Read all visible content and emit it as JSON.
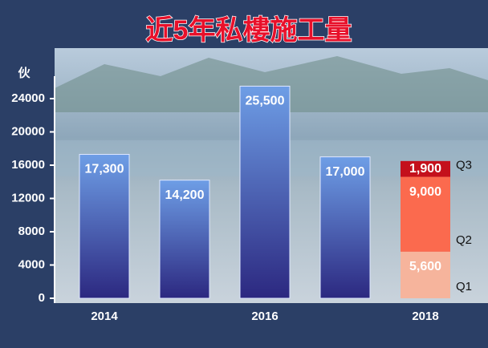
{
  "chart_data": {
    "type": "bar",
    "title": "近5年私樓施工量",
    "y_label": "伙",
    "categories": [
      "2014",
      null,
      "2016",
      null,
      "2018"
    ],
    "series": [
      {
        "color": "#5d8fdc",
        "values": [
          17300,
          14200,
          25500,
          17000,
          null
        ],
        "value_labels": [
          "17,300",
          "14,200",
          "25,500",
          "17,000",
          null
        ]
      },
      {
        "name": "Q1",
        "color": "#f6b49c",
        "values": [
          null,
          null,
          null,
          null,
          5600
        ],
        "value_labels": [
          null,
          null,
          null,
          null,
          "5,600"
        ]
      },
      {
        "name": "Q2",
        "color": "#fb6a4e",
        "values": [
          null,
          null,
          null,
          null,
          9000
        ],
        "value_labels": [
          null,
          null,
          null,
          null,
          "9,000"
        ]
      },
      {
        "name": "Q3",
        "color": "#c4101c",
        "values": [
          null,
          null,
          null,
          null,
          1900
        ],
        "value_labels": [
          null,
          null,
          null,
          null,
          "1,900"
        ]
      }
    ],
    "stacked": true,
    "ylim": [
      0,
      26700
    ],
    "yticks": [
      0,
      4000,
      8000,
      12000,
      16000,
      20000,
      24000
    ]
  }
}
